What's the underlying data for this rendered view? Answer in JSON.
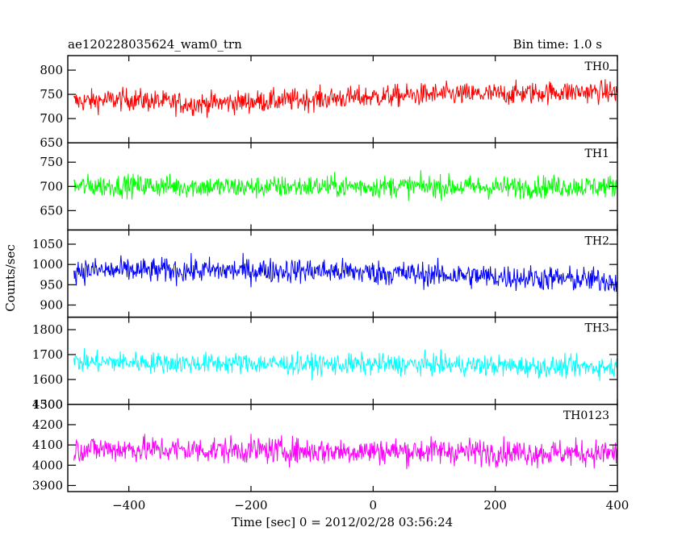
{
  "header": {
    "left": "ae120228035624_wam0_trn",
    "right": "Bin time: 1.0 s"
  },
  "chart_data": {
    "type": "line",
    "xlabel": "Time [sec] 0 = 2012/02/28 03:56:24",
    "ylabel": "Counts/sec",
    "xlim": [
      -500,
      400
    ],
    "xticks": [
      -400,
      -200,
      0,
      200,
      400
    ],
    "grid": false,
    "bin_time_s": 1.0,
    "panels": [
      {
        "name": "TH0",
        "color": "#ff0000",
        "ylim": [
          650,
          830
        ],
        "yticks": [
          650,
          700,
          750,
          800
        ],
        "trend": [
          [
            -490,
            735
          ],
          [
            -400,
            740
          ],
          [
            -300,
            730
          ],
          [
            -200,
            735
          ],
          [
            -100,
            740
          ],
          [
            0,
            745
          ],
          [
            100,
            750
          ],
          [
            200,
            750
          ],
          [
            300,
            755
          ],
          [
            400,
            755
          ]
        ],
        "noise_amplitude": 30
      },
      {
        "name": "TH1",
        "color": "#00ff00",
        "ylim": [
          610,
          790
        ],
        "yticks": [
          650,
          700,
          750
        ],
        "trend": [
          [
            -490,
            700
          ],
          [
            -400,
            702
          ],
          [
            -300,
            700
          ],
          [
            -200,
            698
          ],
          [
            -100,
            700
          ],
          [
            0,
            700
          ],
          [
            100,
            700
          ],
          [
            200,
            698
          ],
          [
            300,
            700
          ],
          [
            400,
            700
          ]
        ],
        "noise_amplitude": 30
      },
      {
        "name": "TH2",
        "color": "#0000ff",
        "ylim": [
          870,
          1085
        ],
        "yticks": [
          900,
          950,
          1000,
          1050
        ],
        "trend": [
          [
            -490,
            985
          ],
          [
            -400,
            985
          ],
          [
            -300,
            985
          ],
          [
            -200,
            985
          ],
          [
            -100,
            985
          ],
          [
            0,
            980
          ],
          [
            100,
            975
          ],
          [
            200,
            970
          ],
          [
            300,
            965
          ],
          [
            400,
            960
          ]
        ],
        "noise_amplitude": 40
      },
      {
        "name": "TH3",
        "color": "#00ffff",
        "ylim": [
          1500,
          1850
        ],
        "yticks": [
          1500,
          1600,
          1700,
          1800
        ],
        "trend": [
          [
            -490,
            1670
          ],
          [
            -400,
            1670
          ],
          [
            -300,
            1665
          ],
          [
            -200,
            1665
          ],
          [
            -100,
            1660
          ],
          [
            0,
            1660
          ],
          [
            100,
            1660
          ],
          [
            200,
            1655
          ],
          [
            300,
            1650
          ],
          [
            400,
            1650
          ]
        ],
        "noise_amplitude": 55
      },
      {
        "name": "TH0123",
        "color": "#ff00ff",
        "ylim": [
          3870,
          4300
        ],
        "yticks": [
          3900,
          4000,
          4100,
          4200,
          4300
        ],
        "trend": [
          [
            -490,
            4080
          ],
          [
            -400,
            4080
          ],
          [
            -300,
            4075
          ],
          [
            -200,
            4075
          ],
          [
            -100,
            4070
          ],
          [
            0,
            4070
          ],
          [
            100,
            4070
          ],
          [
            200,
            4065
          ],
          [
            300,
            4060
          ],
          [
            400,
            4060
          ]
        ],
        "noise_amplitude": 85
      }
    ]
  }
}
